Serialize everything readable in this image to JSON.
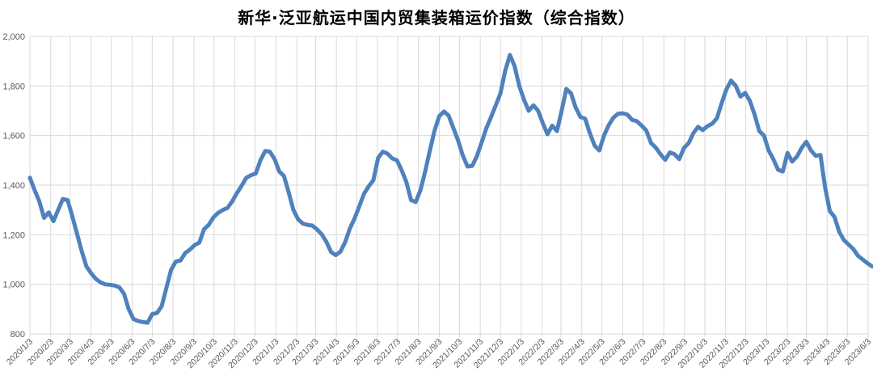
{
  "chart_data": {
    "type": "line",
    "title": "新华·泛亚航运中国内贸集装箱运价指数（综合指数）",
    "xlabel": "",
    "ylabel": "",
    "ylim": [
      800,
      2000
    ],
    "grid": true,
    "legend": "none",
    "colors": {
      "series": "#4F81BD",
      "gridline": "#D9D9D9",
      "tick_label": "#595959",
      "title": "#000000",
      "background": "#FFFFFF"
    },
    "y_ticks": [
      800,
      1000,
      1200,
      1400,
      1600,
      1800,
      2000
    ],
    "y_tick_labels": [
      "800",
      "1,000",
      "1,200",
      "1,400",
      "1,600",
      "1,800",
      "2,000"
    ],
    "x_tick_labels": [
      "2020/1/3",
      "2020/2/3",
      "2020/3/3",
      "2020/4/3",
      "2020/5/3",
      "2020/6/3",
      "2020/7/3",
      "2020/8/3",
      "2020/9/3",
      "2020/10/3",
      "2020/11/3",
      "2020/12/3",
      "2021/1/3",
      "2021/2/3",
      "2021/3/3",
      "2021/4/3",
      "2021/5/3",
      "2021/6/3",
      "2021/7/3",
      "2021/8/3",
      "2021/9/3",
      "2021/10/3",
      "2021/11/3",
      "2021/12/3",
      "2022/1/3",
      "2022/2/3",
      "2022/3/3",
      "2022/4/3",
      "2022/5/3",
      "2022/6/3",
      "2022/7/3",
      "2022/8/3",
      "2022/9/3",
      "2022/10/3",
      "2022/11/3",
      "2022/12/3",
      "2023/1/3",
      "2023/2/3",
      "2023/3/3",
      "2023/4/3",
      "2023/5/3",
      "2023/6/3"
    ],
    "series": [
      {
        "name": "综合指数",
        "sampling": "weekly",
        "start_date": "2020/1/3",
        "interval_days": 7,
        "values": [
          1430,
          1380,
          1335,
          1268,
          1290,
          1255,
          1300,
          1344,
          1340,
          1275,
          1205,
          1135,
          1072,
          1045,
          1022,
          1008,
          1000,
          998,
          995,
          988,
          962,
          900,
          860,
          852,
          848,
          845,
          880,
          884,
          912,
          985,
          1058,
          1092,
          1096,
          1126,
          1140,
          1158,
          1168,
          1222,
          1240,
          1270,
          1288,
          1300,
          1308,
          1335,
          1368,
          1398,
          1430,
          1440,
          1447,
          1500,
          1538,
          1535,
          1505,
          1455,
          1437,
          1370,
          1300,
          1262,
          1245,
          1240,
          1237,
          1222,
          1202,
          1172,
          1130,
          1118,
          1132,
          1170,
          1225,
          1266,
          1315,
          1365,
          1395,
          1420,
          1510,
          1535,
          1527,
          1508,
          1500,
          1460,
          1413,
          1340,
          1332,
          1380,
          1455,
          1540,
          1620,
          1678,
          1697,
          1680,
          1630,
          1580,
          1520,
          1475,
          1478,
          1517,
          1572,
          1630,
          1675,
          1722,
          1770,
          1860,
          1925,
          1880,
          1800,
          1745,
          1700,
          1722,
          1700,
          1650,
          1605,
          1640,
          1618,
          1700,
          1788,
          1770,
          1712,
          1675,
          1668,
          1610,
          1560,
          1540,
          1600,
          1642,
          1672,
          1688,
          1690,
          1684,
          1663,
          1658,
          1640,
          1620,
          1570,
          1552,
          1525,
          1502,
          1532,
          1525,
          1505,
          1550,
          1570,
          1610,
          1635,
          1622,
          1638,
          1648,
          1670,
          1730,
          1785,
          1822,
          1800,
          1757,
          1772,
          1740,
          1685,
          1618,
          1600,
          1540,
          1505,
          1462,
          1455,
          1530,
          1495,
          1515,
          1550,
          1575,
          1540,
          1518,
          1522,
          1390,
          1295,
          1272,
          1212,
          1178,
          1160,
          1142,
          1115,
          1100,
          1085,
          1072
        ]
      }
    ]
  }
}
